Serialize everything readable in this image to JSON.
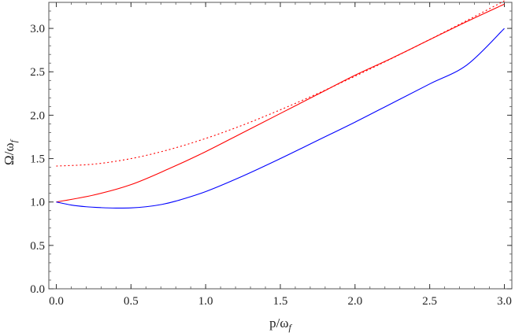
{
  "chart_data": {
    "type": "line",
    "xlabel": {
      "main": "p/ω",
      "sub": "f"
    },
    "ylabel": {
      "main": "Ω/ω",
      "sub": "f"
    },
    "xlim": [
      -0.05,
      3.05
    ],
    "ylim": [
      0.0,
      3.3
    ],
    "x_ticks": [
      0.0,
      0.5,
      1.0,
      1.5,
      2.0,
      2.5,
      3.0
    ],
    "x_tick_labels": [
      "0.0",
      "0.5",
      "1.0",
      "1.5",
      "2.0",
      "2.5",
      "3.0"
    ],
    "y_ticks": [
      0.0,
      0.5,
      1.0,
      1.5,
      2.0,
      2.5,
      3.0
    ],
    "y_tick_labels": [
      "0.0",
      "0.5",
      "1.0",
      "1.5",
      "2.0",
      "2.5",
      "3.0"
    ],
    "grid": false,
    "series": [
      {
        "color": "#ff0000",
        "dash": "dotted",
        "x": [
          0.0,
          0.25,
          0.5,
          0.75,
          1.0,
          1.25,
          1.5,
          1.75,
          2.0,
          2.25,
          2.5,
          2.75,
          3.0
        ],
        "y": [
          1.414,
          1.436,
          1.5,
          1.601,
          1.732,
          1.887,
          2.062,
          2.25,
          2.449,
          2.657,
          2.872,
          3.092,
          3.317
        ]
      },
      {
        "color": "#ff0000",
        "dash": "solid",
        "x": [
          0.0,
          0.25,
          0.5,
          0.75,
          1.0,
          1.25,
          1.5,
          1.75,
          2.0,
          2.25,
          2.5,
          2.75,
          3.0
        ],
        "y": [
          1.0,
          1.08,
          1.2,
          1.38,
          1.58,
          1.8,
          2.02,
          2.24,
          2.46,
          2.66,
          2.87,
          3.08,
          3.28
        ]
      },
      {
        "color": "#0000ff",
        "dash": "solid",
        "x": [
          0.0,
          0.1,
          0.2,
          0.3,
          0.4,
          0.5,
          0.6,
          0.7,
          0.8,
          1.0,
          1.25,
          1.5,
          1.75,
          2.0,
          2.25,
          2.5,
          2.75,
          3.0
        ],
        "y": [
          1.0,
          0.965,
          0.945,
          0.935,
          0.93,
          0.932,
          0.945,
          0.97,
          1.01,
          1.12,
          1.3,
          1.5,
          1.71,
          1.92,
          2.14,
          2.36,
          2.58,
          3.0
        ]
      }
    ]
  }
}
